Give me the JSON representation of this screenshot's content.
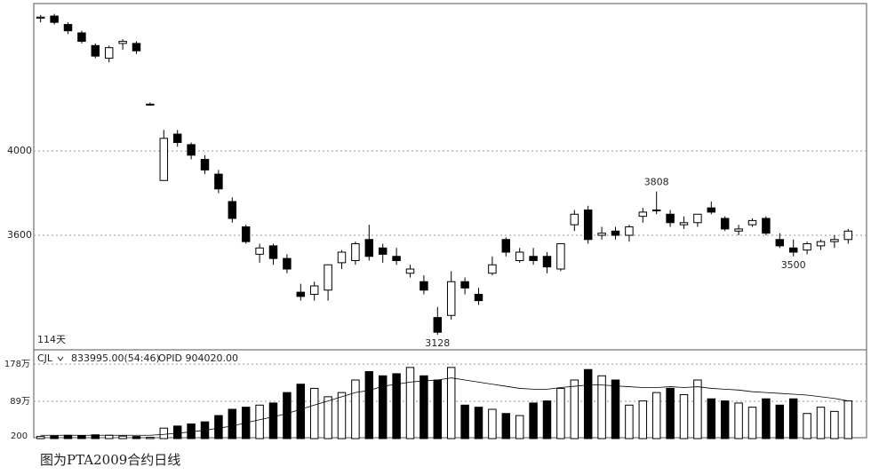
{
  "chart_data": [
    {
      "type": "candlestick",
      "corner_label": "114天",
      "ylim": [
        3061,
        4695
      ],
      "yticks": [
        3600,
        4000
      ],
      "grid": true,
      "up_color": "#ffffff",
      "down_color": "#000000",
      "ohlc": [
        [
          4630,
          4645,
          4610,
          4635
        ],
        [
          4640,
          4650,
          4600,
          4610
        ],
        [
          4600,
          4610,
          4555,
          4570
        ],
        [
          4560,
          4570,
          4510,
          4520
        ],
        [
          4500,
          4510,
          4440,
          4450
        ],
        [
          4440,
          4500,
          4420,
          4490
        ],
        [
          4510,
          4530,
          4480,
          4520
        ],
        [
          4510,
          4520,
          4460,
          4475
        ],
        [
          4220,
          4230,
          4215,
          4222
        ],
        [
          3860,
          4100,
          3860,
          4060
        ],
        [
          4080,
          4100,
          4020,
          4040
        ],
        [
          4030,
          4040,
          3960,
          3980
        ],
        [
          3960,
          3980,
          3890,
          3910
        ],
        [
          3890,
          3910,
          3800,
          3820
        ],
        [
          3760,
          3780,
          3660,
          3680
        ],
        [
          3640,
          3650,
          3560,
          3570
        ],
        [
          3510,
          3560,
          3470,
          3540
        ],
        [
          3550,
          3560,
          3460,
          3490
        ],
        [
          3490,
          3510,
          3420,
          3440
        ],
        [
          3330,
          3370,
          3290,
          3310
        ],
        [
          3320,
          3380,
          3290,
          3360
        ],
        [
          3340,
          3460,
          3290,
          3460
        ],
        [
          3470,
          3530,
          3440,
          3520
        ],
        [
          3480,
          3570,
          3460,
          3560
        ],
        [
          3580,
          3650,
          3480,
          3500
        ],
        [
          3540,
          3560,
          3470,
          3510
        ],
        [
          3500,
          3540,
          3460,
          3480
        ],
        [
          3420,
          3460,
          3400,
          3440
        ],
        [
          3380,
          3410,
          3320,
          3340
        ],
        [
          3210,
          3260,
          3128,
          3140
        ],
        [
          3220,
          3430,
          3200,
          3380
        ],
        [
          3380,
          3400,
          3320,
          3350
        ],
        [
          3320,
          3350,
          3270,
          3290
        ],
        [
          3420,
          3500,
          3410,
          3460
        ],
        [
          3580,
          3590,
          3500,
          3520
        ],
        [
          3480,
          3540,
          3470,
          3520
        ],
        [
          3500,
          3540,
          3460,
          3480
        ],
        [
          3500,
          3520,
          3420,
          3450
        ],
        [
          3440,
          3560,
          3430,
          3560
        ],
        [
          3650,
          3720,
          3620,
          3700
        ],
        [
          3720,
          3740,
          3560,
          3580
        ],
        [
          3600,
          3640,
          3580,
          3610
        ],
        [
          3620,
          3640,
          3580,
          3600
        ],
        [
          3600,
          3650,
          3570,
          3640
        ],
        [
          3690,
          3730,
          3660,
          3710
        ],
        [
          3720,
          3808,
          3700,
          3720
        ],
        [
          3700,
          3720,
          3640,
          3660
        ],
        [
          3650,
          3690,
          3630,
          3660
        ],
        [
          3660,
          3700,
          3640,
          3700
        ],
        [
          3730,
          3760,
          3700,
          3710
        ],
        [
          3680,
          3690,
          3620,
          3630
        ],
        [
          3620,
          3650,
          3600,
          3630
        ],
        [
          3650,
          3680,
          3640,
          3670
        ],
        [
          3680,
          3690,
          3600,
          3610
        ],
        [
          3580,
          3610,
          3540,
          3550
        ],
        [
          3540,
          3580,
          3500,
          3520
        ],
        [
          3530,
          3570,
          3510,
          3560
        ],
        [
          3550,
          3580,
          3530,
          3570
        ],
        [
          3570,
          3600,
          3540,
          3580
        ],
        [
          3580,
          3630,
          3560,
          3620
        ]
      ],
      "annotations": [
        {
          "index": 45,
          "value": 3808,
          "position": "above"
        },
        {
          "index": 29,
          "value": 3128,
          "position": "below"
        },
        {
          "index": 55,
          "value": 3500,
          "position": "below"
        }
      ]
    },
    {
      "type": "volume",
      "name": "CJL",
      "readout": "833995.00(54:46)",
      "extra": "OPID 904020.00",
      "corner_label": "200",
      "ylim": [
        0,
        210
      ],
      "yticks": [
        {
          "value": 178,
          "label": "178万"
        },
        {
          "value": 89,
          "label": "89万"
        }
      ],
      "grid": true,
      "values": [
        5,
        6,
        8,
        7,
        9,
        8,
        6,
        5,
        3,
        25,
        30,
        35,
        40,
        55,
        70,
        75,
        80,
        85,
        110,
        130,
        120,
        100,
        110,
        140,
        160,
        150,
        155,
        170,
        150,
        140,
        170,
        80,
        75,
        70,
        60,
        55,
        85,
        90,
        120,
        140,
        165,
        150,
        140,
        80,
        90,
        110,
        120,
        105,
        140,
        95,
        90,
        85,
        75,
        95,
        80,
        95,
        60,
        75,
        65,
        90
      ],
      "ma": [
        8,
        8,
        8,
        8,
        8,
        8,
        8,
        8,
        8,
        10,
        13,
        16,
        20,
        25,
        30,
        38,
        45,
        52,
        60,
        70,
        80,
        90,
        100,
        110,
        115,
        125,
        130,
        135,
        138,
        140,
        145,
        140,
        135,
        130,
        125,
        120,
        118,
        118,
        122,
        125,
        128,
        128,
        126,
        124,
        122,
        122,
        124,
        122,
        124,
        120,
        118,
        116,
        112,
        110,
        108,
        106,
        104,
        100,
        96,
        90
      ]
    }
  ],
  "caption": "图为PTA2009合约日线"
}
